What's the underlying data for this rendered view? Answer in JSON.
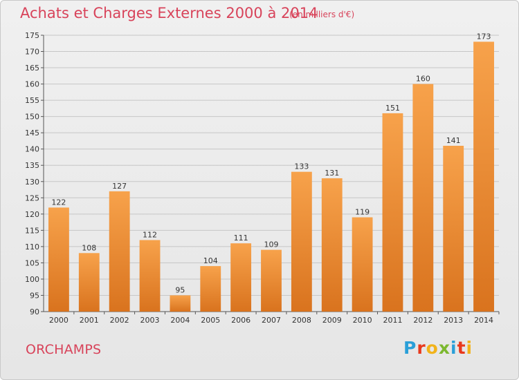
{
  "header": {
    "title": "Achats et Charges Externes 2000 à 2014",
    "subtitle": "(en milliers d'€)"
  },
  "footer": {
    "place": "ORCHAMPS",
    "logo_text": "Proxiti",
    "logo_colors": [
      "#2a9fd8",
      "#e8391d",
      "#f2b31a",
      "#7cb82f",
      "#2a9fd8",
      "#e8391d",
      "#f2b31a"
    ]
  },
  "colors": {
    "bar_light": "#f7a24b",
    "bar_dark": "#d9731e",
    "title": "#d8435a",
    "grid": "#c6c6c6"
  },
  "chart_data": {
    "type": "bar",
    "title": "Achats et Charges Externes 2000 à 2014",
    "subtitle": "(en milliers d'€)",
    "categories": [
      "2000",
      "2001",
      "2002",
      "2003",
      "2004",
      "2005",
      "2006",
      "2007",
      "2008",
      "2009",
      "2010",
      "2011",
      "2012",
      "2013",
      "2014"
    ],
    "values": [
      122,
      108,
      127,
      112,
      95,
      104,
      111,
      109,
      133,
      131,
      119,
      151,
      160,
      141,
      173
    ],
    "ylim": [
      90,
      175
    ],
    "yticks": [
      90,
      95,
      100,
      105,
      110,
      115,
      120,
      125,
      130,
      135,
      140,
      145,
      150,
      155,
      160,
      165,
      170,
      175
    ],
    "grid": true,
    "data_labels": true
  }
}
